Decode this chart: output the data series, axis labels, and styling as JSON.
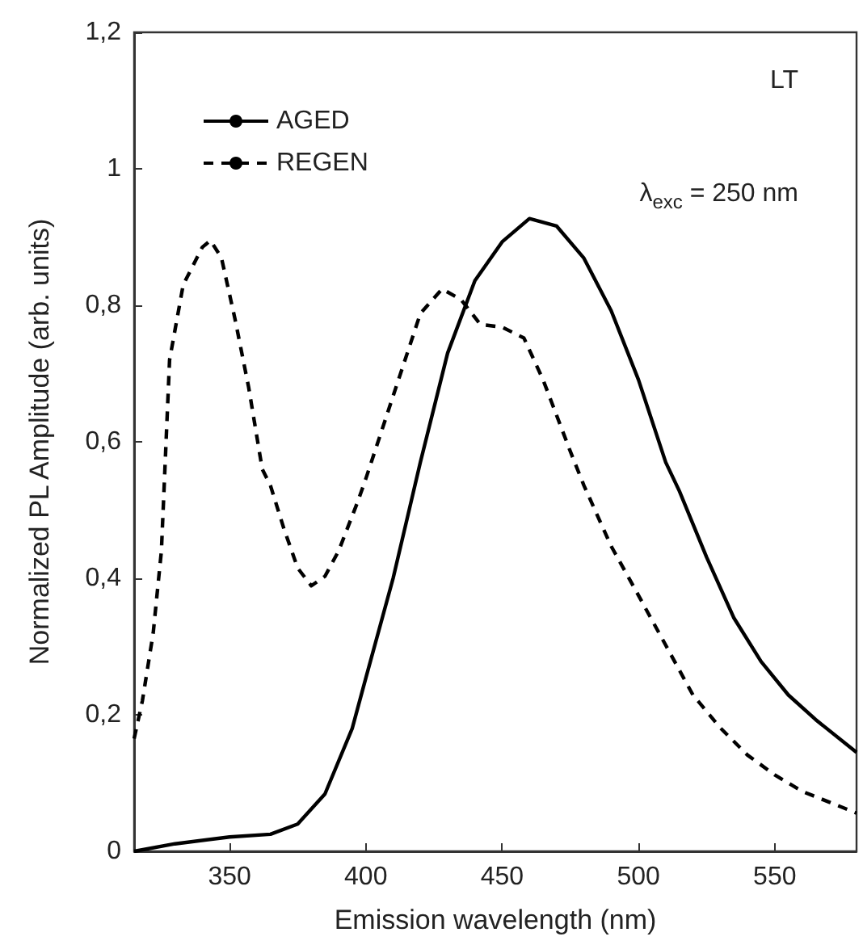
{
  "chart_data": {
    "type": "line",
    "xlabel": "Emission wavelength (nm)",
    "ylabel": "Normalized PL Amplitude (arb. units)",
    "xlim": [
      315,
      580
    ],
    "xticks": [
      350,
      400,
      450,
      500,
      550
    ],
    "ylim": [
      0,
      1.2
    ],
    "yticks": [
      0,
      {
        "value": 0.2,
        "label": "0,2"
      },
      {
        "value": 0.4,
        "label": "0,4"
      },
      {
        "value": 0.6,
        "label": "0,6"
      },
      {
        "value": 0.8,
        "label": "0,8"
      },
      1,
      {
        "value": 1.2,
        "label": "1,2"
      }
    ],
    "grid": false,
    "legend": "top left",
    "marker": "none",
    "annotations": [
      "LT",
      "λ$_{exc}$ = 250 nm"
    ],
    "series": [
      {
        "name": "AGED",
        "color": "#000000",
        "line_style": "solid",
        "x": [
          315,
          330,
          350,
          365,
          375,
          385,
          395,
          400,
          410,
          420,
          430,
          440,
          450,
          460,
          470,
          480,
          490,
          500,
          510,
          515,
          525,
          535,
          545,
          555,
          565,
          580
        ],
        "values": [
          0,
          0.011,
          0.021,
          0.025,
          0.04,
          0.084,
          0.18,
          0.254,
          0.4,
          0.57,
          0.73,
          0.836,
          0.893,
          0.927,
          0.916,
          0.869,
          0.792,
          0.691,
          0.57,
          0.528,
          0.431,
          0.342,
          0.278,
          0.229,
          0.193,
          0.145
        ]
      },
      {
        "name": "REGEN",
        "color": "#000000",
        "line_style": "dashed",
        "x": [
          315,
          318,
          322,
          325,
          328,
          333,
          340,
          343,
          347,
          352,
          357,
          362,
          365,
          370,
          375,
          380,
          385,
          390,
          397,
          400,
          410,
          420,
          428,
          435,
          442,
          450,
          458,
          465,
          475,
          480,
          490,
          500,
          510,
          520,
          530,
          540,
          550,
          560,
          570,
          580
        ],
        "values": [
          0.165,
          0.22,
          0.32,
          0.44,
          0.72,
          0.83,
          0.885,
          0.895,
          0.87,
          0.78,
          0.68,
          0.56,
          0.536,
          0.472,
          0.415,
          0.389,
          0.403,
          0.44,
          0.512,
          0.546,
          0.667,
          0.788,
          0.824,
          0.808,
          0.772,
          0.768,
          0.752,
          0.691,
          0.586,
          0.536,
          0.447,
          0.375,
          0.302,
          0.229,
          0.181,
          0.141,
          0.112,
          0.088,
          0.072,
          0.056
        ]
      }
    ]
  }
}
